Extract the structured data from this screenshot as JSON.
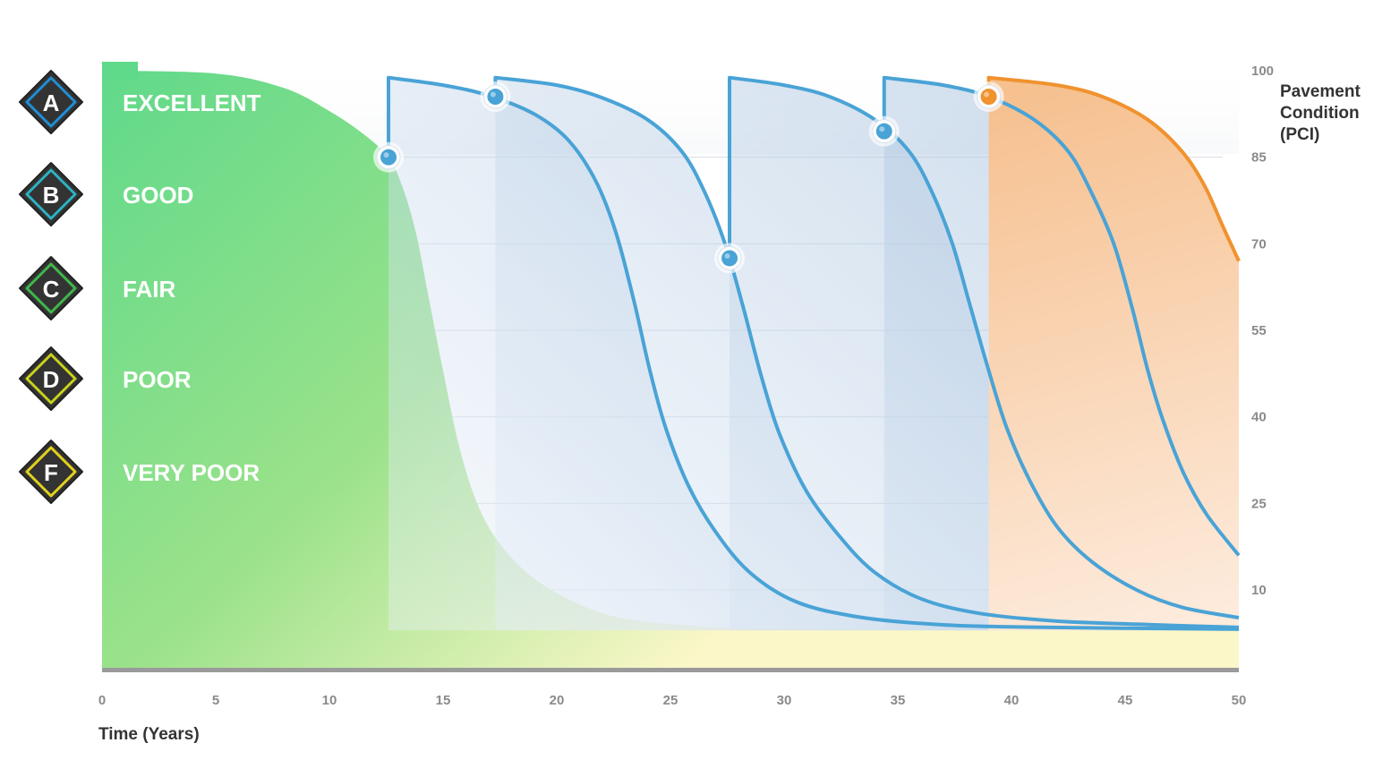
{
  "chart_data": {
    "type": "area",
    "xlabel": "Time (Years)",
    "ylabel_lines": [
      "Pavement",
      "Condition",
      "(PCI)"
    ],
    "xlim": [
      0,
      50
    ],
    "ylim": [
      0,
      100
    ],
    "x_ticks": [
      0,
      5,
      10,
      15,
      20,
      25,
      30,
      35,
      40,
      45,
      50
    ],
    "y_ticks": [
      10,
      25,
      40,
      55,
      70,
      85,
      100
    ],
    "grid": true,
    "grades": [
      {
        "letter": "A",
        "label": "EXCELLENT",
        "color": "#1f8ed6"
      },
      {
        "letter": "B",
        "label": "GOOD",
        "color": "#2bb3c4"
      },
      {
        "letter": "C",
        "label": "FAIR",
        "color": "#3fb84a"
      },
      {
        "letter": "D",
        "label": "POOR",
        "color": "#c9d31a"
      },
      {
        "letter": "F",
        "label": "VERY POOR",
        "color": "#e2d21c"
      }
    ],
    "base_curve": {
      "color": "#6edc8a",
      "points": [
        [
          0,
          100
        ],
        [
          5,
          99.5
        ],
        [
          8,
          97
        ],
        [
          10,
          93
        ],
        [
          11.5,
          89
        ],
        [
          12.6,
          85
        ],
        [
          13.2,
          80
        ],
        [
          13.8,
          72
        ],
        [
          14.4,
          60
        ],
        [
          15,
          48
        ],
        [
          15.7,
          35
        ],
        [
          16.5,
          25
        ],
        [
          17.5,
          18
        ],
        [
          19,
          12
        ],
        [
          21,
          7.5
        ],
        [
          23,
          5
        ],
        [
          26,
          3.8
        ],
        [
          30,
          3.3
        ],
        [
          50,
          3
        ]
      ]
    },
    "treatments": [
      {
        "type": "line",
        "color": "#49a3d6",
        "apply_at": [
          12.6,
          85
        ],
        "points": [
          [
            12.6,
            98.8
          ],
          [
            15,
            97.5
          ],
          [
            17,
            95.7
          ],
          [
            19,
            92.5
          ],
          [
            20.5,
            88
          ],
          [
            21.7,
            81
          ],
          [
            22.6,
            72
          ],
          [
            23.4,
            60
          ],
          [
            24.1,
            48
          ],
          [
            24.8,
            38
          ],
          [
            25.8,
            28
          ],
          [
            27,
            20
          ],
          [
            28.5,
            13
          ],
          [
            30.5,
            8
          ],
          [
            33,
            5.5
          ],
          [
            36,
            4.2
          ],
          [
            40,
            3.6
          ],
          [
            50,
            3.2
          ]
        ]
      },
      {
        "type": "line",
        "color": "#49a3d6",
        "apply_at": [
          17.3,
          95.5
        ],
        "points": [
          [
            17.3,
            98.8
          ],
          [
            20,
            97.5
          ],
          [
            22,
            95.3
          ],
          [
            24,
            91.5
          ],
          [
            25.5,
            86
          ],
          [
            26.5,
            79
          ],
          [
            27.4,
            70
          ],
          [
            28.2,
            59
          ],
          [
            29,
            47
          ],
          [
            29.8,
            37
          ],
          [
            31,
            27
          ],
          [
            32.5,
            19
          ],
          [
            34,
            13
          ],
          [
            36,
            8.5
          ],
          [
            38.5,
            6
          ],
          [
            42,
            4.6
          ],
          [
            46,
            4
          ],
          [
            50,
            3.5
          ]
        ]
      },
      {
        "type": "line",
        "color": "#49a3d6",
        "apply_at": [
          27.6,
          67.5
        ],
        "points": [
          [
            27.6,
            98.8
          ],
          [
            30,
            97.5
          ],
          [
            32,
            95.5
          ],
          [
            34,
            91.5
          ],
          [
            35.5,
            86
          ],
          [
            36.5,
            79
          ],
          [
            37.4,
            70
          ],
          [
            38.2,
            59
          ],
          [
            39,
            48
          ],
          [
            39.8,
            38
          ],
          [
            40.8,
            29
          ],
          [
            42,
            21
          ],
          [
            43.5,
            15
          ],
          [
            45.5,
            10
          ],
          [
            47.5,
            7
          ],
          [
            50,
            5.2
          ]
        ]
      },
      {
        "type": "line",
        "color": "#49a3d6",
        "apply_at": [
          34.4,
          89.5
        ],
        "points": [
          [
            34.4,
            98.8
          ],
          [
            37,
            97.5
          ],
          [
            39,
            95.5
          ],
          [
            41,
            91.5
          ],
          [
            42.5,
            86
          ],
          [
            43.5,
            79
          ],
          [
            44.5,
            70
          ],
          [
            45.3,
            59
          ],
          [
            46,
            48
          ],
          [
            46.7,
            39
          ],
          [
            47.6,
            30
          ],
          [
            48.6,
            23
          ],
          [
            50,
            16
          ]
        ]
      },
      {
        "type": "line",
        "color": "#f0922e",
        "apply_at": [
          39,
          95.5
        ],
        "points": [
          [
            39,
            98.8
          ],
          [
            42,
            97.5
          ],
          [
            44,
            95.5
          ],
          [
            46,
            91.5
          ],
          [
            47.5,
            86
          ],
          [
            48.5,
            80
          ],
          [
            49.3,
            73
          ],
          [
            50,
            67
          ]
        ]
      }
    ]
  }
}
